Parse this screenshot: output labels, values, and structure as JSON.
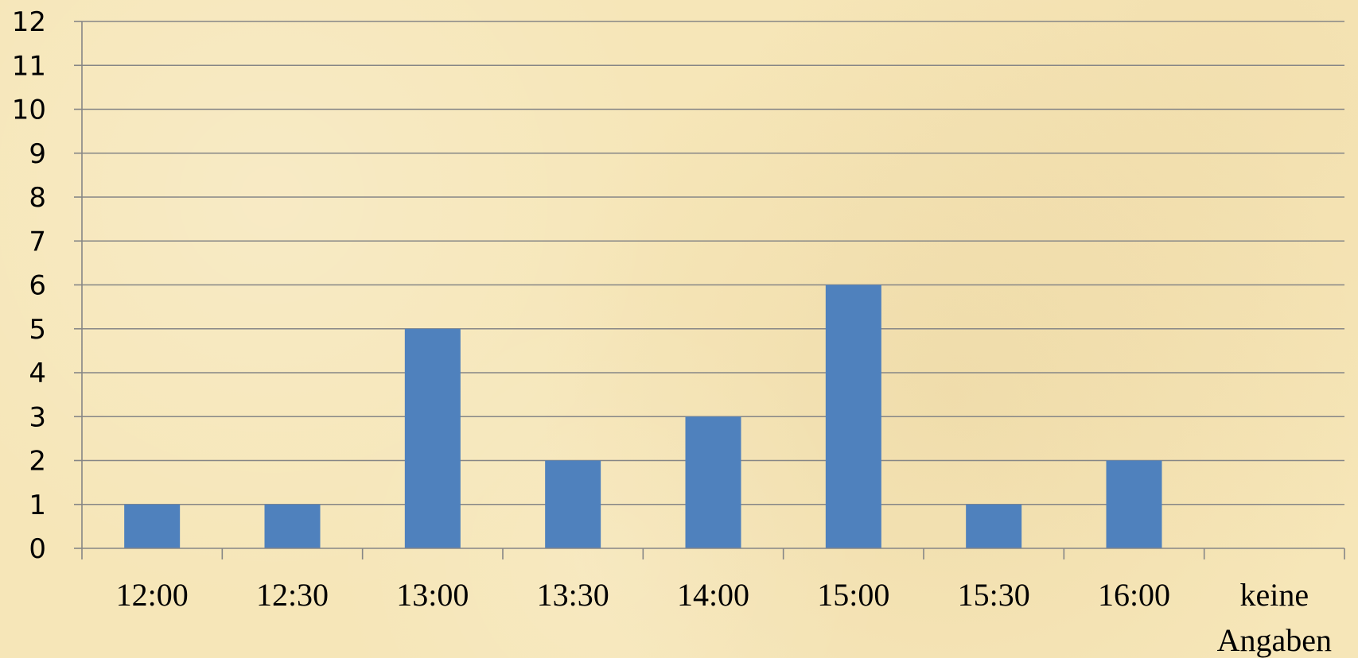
{
  "chart_data": {
    "type": "bar",
    "categories": [
      "12:00",
      "12:30",
      "13:00",
      "13:30",
      "14:00",
      "15:00",
      "15:30",
      "16:00",
      "keine Angaben"
    ],
    "category_lines": [
      [
        "12:00"
      ],
      [
        "12:30"
      ],
      [
        "13:00"
      ],
      [
        "13:30"
      ],
      [
        "14:00"
      ],
      [
        "15:00"
      ],
      [
        "15:30"
      ],
      [
        "16:00"
      ],
      [
        "keine",
        "Angaben"
      ]
    ],
    "values": [
      1,
      1,
      5,
      2,
      3,
      6,
      1,
      2,
      0
    ],
    "y_ticks": [
      "0",
      "1",
      "2",
      "3",
      "4",
      "5",
      "6",
      "7",
      "8",
      "9",
      "10",
      "11",
      "12"
    ],
    "ylim": [
      0,
      12
    ],
    "title": "",
    "xlabel": "",
    "ylabel": "",
    "grid": true,
    "legend": "none",
    "colors": {
      "bar": "#4f81bd",
      "gridline": "#868686",
      "axis": "#868686",
      "background": "#f6e6b8"
    }
  }
}
